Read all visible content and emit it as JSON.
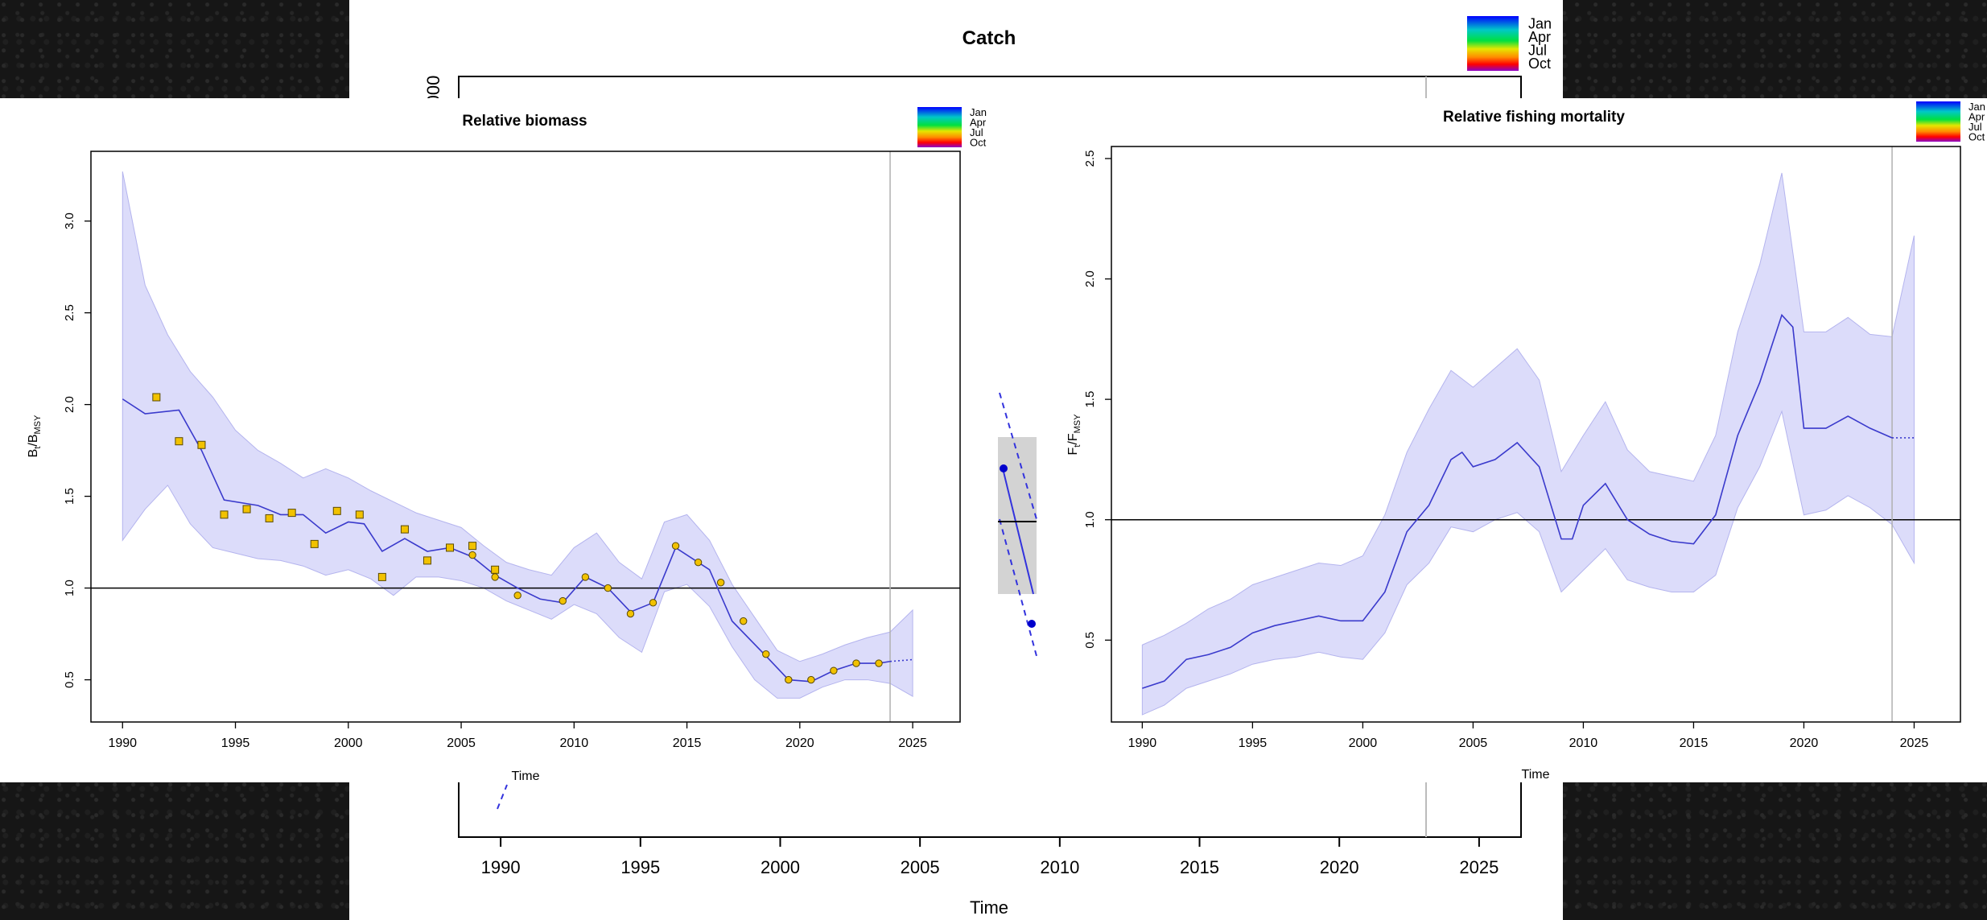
{
  "chart_data": [
    {
      "id": "catch",
      "type": "line",
      "title": "Catch",
      "xlabel": "Time",
      "ylabel_partial": "000",
      "xlim": [
        1988.5,
        2026.5
      ],
      "x_ticks": [
        1990,
        1995,
        2000,
        2005,
        2010,
        2015,
        2020,
        2025
      ],
      "x_tick_labels": [
        "1990",
        "1995",
        "2000",
        "2005",
        "2010",
        "2015",
        "2020",
        "2025"
      ],
      "vline_x": 2023,
      "legend": {
        "placement": "top-right",
        "entries": [
          "Jan",
          "Apr",
          "Jul",
          "Oct"
        ]
      }
    },
    {
      "id": "biomass",
      "type": "line",
      "title": "Relative biomass",
      "xlabel": "Time",
      "ylabel": "B",
      "ylabel_sub_t": "t",
      "ylabel_slash": "/B",
      "ylabel_sub_msy": "MSY",
      "xlim": [
        1988.6,
        2027.1
      ],
      "ylim": [
        0.27,
        3.38
      ],
      "x_ticks": [
        1990,
        1995,
        2000,
        2005,
        2010,
        2015,
        2020,
        2025
      ],
      "x_tick_labels": [
        "1990",
        "1995",
        "2000",
        "2005",
        "2010",
        "2015",
        "2020",
        "2025"
      ],
      "y_ticks": [
        0.5,
        1.0,
        1.5,
        2.0,
        2.5,
        3.0
      ],
      "y_tick_labels": [
        "0.5",
        "1.0",
        "1.5",
        "2.0",
        "2.5",
        "3.0"
      ],
      "reference_line": 1.0,
      "vline_x": 2024,
      "legend": {
        "placement": "top-right",
        "entries": [
          "Jan",
          "Apr",
          "Jul",
          "Oct"
        ]
      },
      "estimate": [
        [
          1990,
          2.03
        ],
        [
          1991,
          1.95
        ],
        [
          1992.5,
          1.97
        ],
        [
          1993.5,
          1.75
        ],
        [
          1994.5,
          1.48
        ],
        [
          1996,
          1.45
        ],
        [
          1997,
          1.4
        ],
        [
          1998,
          1.4
        ],
        [
          1999,
          1.3
        ],
        [
          2000,
          1.36
        ],
        [
          2000.7,
          1.35
        ],
        [
          2001.5,
          1.2
        ],
        [
          2002.5,
          1.27
        ],
        [
          2003.5,
          1.2
        ],
        [
          2004.5,
          1.22
        ],
        [
          2005.5,
          1.17
        ],
        [
          2006.5,
          1.07
        ],
        [
          2007.5,
          1.0
        ],
        [
          2008.5,
          0.94
        ],
        [
          2009.5,
          0.92
        ],
        [
          2010.5,
          1.06
        ],
        [
          2011.5,
          1.0
        ],
        [
          2012.5,
          0.87
        ],
        [
          2013.5,
          0.92
        ],
        [
          2014.5,
          1.22
        ],
        [
          2016,
          1.1
        ],
        [
          2017,
          0.82
        ],
        [
          2018.5,
          0.63
        ],
        [
          2019.5,
          0.5
        ],
        [
          2020.5,
          0.49
        ],
        [
          2021.5,
          0.55
        ],
        [
          2022.5,
          0.59
        ],
        [
          2023.5,
          0.59
        ],
        [
          2024,
          0.6
        ]
      ],
      "forecast": [
        [
          2024,
          0.6
        ],
        [
          2025,
          0.61
        ]
      ],
      "ci_upper": [
        [
          1990,
          3.27
        ],
        [
          1991,
          2.65
        ],
        [
          1992,
          2.38
        ],
        [
          1993,
          2.18
        ],
        [
          1994,
          2.04
        ],
        [
          1995,
          1.86
        ],
        [
          1996,
          1.75
        ],
        [
          1997,
          1.68
        ],
        [
          1998,
          1.6
        ],
        [
          1999,
          1.65
        ],
        [
          2000,
          1.6
        ],
        [
          2001,
          1.53
        ],
        [
          2002,
          1.47
        ],
        [
          2003,
          1.41
        ],
        [
          2004,
          1.37
        ],
        [
          2005,
          1.33
        ],
        [
          2006,
          1.23
        ],
        [
          2007,
          1.14
        ],
        [
          2008,
          1.1
        ],
        [
          2009,
          1.07
        ],
        [
          2010,
          1.22
        ],
        [
          2011,
          1.3
        ],
        [
          2012,
          1.14
        ],
        [
          2013,
          1.05
        ],
        [
          2014,
          1.36
        ],
        [
          2015,
          1.4
        ],
        [
          2016,
          1.26
        ],
        [
          2017,
          1.02
        ],
        [
          2018,
          0.84
        ],
        [
          2019,
          0.66
        ],
        [
          2020,
          0.6
        ],
        [
          2021,
          0.64
        ],
        [
          2022,
          0.69
        ],
        [
          2023,
          0.73
        ],
        [
          2024,
          0.76
        ],
        [
          2025,
          0.88
        ]
      ],
      "ci_lower": [
        [
          1990,
          1.26
        ],
        [
          1991,
          1.43
        ],
        [
          1992,
          1.56
        ],
        [
          1993,
          1.35
        ],
        [
          1994,
          1.22
        ],
        [
          1995,
          1.19
        ],
        [
          1996,
          1.16
        ],
        [
          1997,
          1.15
        ],
        [
          1998,
          1.12
        ],
        [
          1999,
          1.07
        ],
        [
          2000,
          1.1
        ],
        [
          2001,
          1.05
        ],
        [
          2002,
          0.96
        ],
        [
          2003,
          1.06
        ],
        [
          2004,
          1.06
        ],
        [
          2005,
          1.04
        ],
        [
          2006,
          1.0
        ],
        [
          2007,
          0.93
        ],
        [
          2008,
          0.88
        ],
        [
          2009,
          0.83
        ],
        [
          2010,
          0.91
        ],
        [
          2011,
          0.86
        ],
        [
          2012,
          0.73
        ],
        [
          2013,
          0.65
        ],
        [
          2014,
          0.98
        ],
        [
          2015,
          1.02
        ],
        [
          2016,
          0.9
        ],
        [
          2017,
          0.68
        ],
        [
          2018,
          0.5
        ],
        [
          2019,
          0.4
        ],
        [
          2020,
          0.4
        ],
        [
          2021,
          0.46
        ],
        [
          2022,
          0.5
        ],
        [
          2023,
          0.5
        ],
        [
          2024,
          0.48
        ],
        [
          2025,
          0.41
        ]
      ],
      "index_squares": [
        [
          1991.5,
          2.04
        ],
        [
          1992.5,
          1.8
        ],
        [
          1993.5,
          1.78
        ],
        [
          1994.5,
          1.4
        ],
        [
          1995.5,
          1.43
        ],
        [
          1996.5,
          1.38
        ],
        [
          1997.5,
          1.41
        ],
        [
          1998.5,
          1.24
        ],
        [
          1999.5,
          1.42
        ],
        [
          2000.5,
          1.4
        ],
        [
          2001.5,
          1.06
        ],
        [
          2002.5,
          1.32
        ],
        [
          2003.5,
          1.15
        ],
        [
          2004.5,
          1.22
        ],
        [
          2005.5,
          1.23
        ],
        [
          2006.5,
          1.1
        ]
      ],
      "index_circles": [
        [
          2005.5,
          1.18
        ],
        [
          2006.5,
          1.06
        ],
        [
          2007.5,
          0.96
        ],
        [
          2009.5,
          0.93
        ],
        [
          2010.5,
          1.06
        ],
        [
          2011.5,
          1.0
        ],
        [
          2012.5,
          0.86
        ],
        [
          2013.5,
          0.92
        ],
        [
          2014.5,
          1.23
        ],
        [
          2015.5,
          1.14
        ],
        [
          2016.5,
          1.03
        ],
        [
          2017.5,
          0.82
        ],
        [
          2018.5,
          0.64
        ],
        [
          2019.5,
          0.5
        ],
        [
          2020.5,
          0.5
        ],
        [
          2021.5,
          0.55
        ],
        [
          2022.5,
          0.59
        ],
        [
          2023.5,
          0.59
        ]
      ]
    },
    {
      "id": "fishing",
      "type": "line",
      "title": "Relative fishing mortality",
      "xlabel": "Time",
      "ylabel": "F",
      "ylabel_sub_t": "t",
      "ylabel_slash": "/F",
      "ylabel_sub_msy": "MSY",
      "xlim": [
        1988.6,
        2027.1
      ],
      "ylim": [
        0.16,
        2.55
      ],
      "x_ticks": [
        1990,
        1995,
        2000,
        2005,
        2010,
        2015,
        2020,
        2025
      ],
      "x_tick_labels": [
        "1990",
        "1995",
        "2000",
        "2005",
        "2010",
        "2015",
        "2020",
        "2025"
      ],
      "y_ticks": [
        0.5,
        1.0,
        1.5,
        2.0,
        2.5
      ],
      "y_tick_labels": [
        "0.5",
        "1.0",
        "1.5",
        "2.0",
        "2.5"
      ],
      "reference_line": 1.0,
      "vline_x": 2024,
      "legend": {
        "placement": "top-right",
        "entries": [
          "Jan",
          "Apr",
          "Jul",
          "Oct"
        ]
      },
      "estimate": [
        [
          1990,
          0.3
        ],
        [
          1991,
          0.33
        ],
        [
          1992,
          0.42
        ],
        [
          1993,
          0.44
        ],
        [
          1994,
          0.47
        ],
        [
          1995,
          0.53
        ],
        [
          1996,
          0.56
        ],
        [
          1997,
          0.58
        ],
        [
          1998,
          0.6
        ],
        [
          1999,
          0.58
        ],
        [
          2000,
          0.58
        ],
        [
          2001,
          0.7
        ],
        [
          2002,
          0.95
        ],
        [
          2003,
          1.06
        ],
        [
          2004,
          1.25
        ],
        [
          2004.5,
          1.28
        ],
        [
          2005,
          1.22
        ],
        [
          2006,
          1.25
        ],
        [
          2007,
          1.32
        ],
        [
          2008,
          1.22
        ],
        [
          2009,
          0.92
        ],
        [
          2009.5,
          0.92
        ],
        [
          2010,
          1.06
        ],
        [
          2011,
          1.15
        ],
        [
          2012,
          1.0
        ],
        [
          2013,
          0.94
        ],
        [
          2014,
          0.91
        ],
        [
          2015,
          0.9
        ],
        [
          2016,
          1.02
        ],
        [
          2017,
          1.35
        ],
        [
          2018,
          1.57
        ],
        [
          2019,
          1.85
        ],
        [
          2019.5,
          1.8
        ],
        [
          2020,
          1.38
        ],
        [
          2021,
          1.38
        ],
        [
          2022,
          1.43
        ],
        [
          2023,
          1.38
        ],
        [
          2024,
          1.34
        ]
      ],
      "forecast": [
        [
          2024,
          1.34
        ],
        [
          2025,
          1.34
        ]
      ],
      "ci_upper": [
        [
          1990,
          0.48
        ],
        [
          1991,
          0.52
        ],
        [
          1992,
          0.57
        ],
        [
          1993,
          0.63
        ],
        [
          1994,
          0.67
        ],
        [
          1995,
          0.73
        ],
        [
          1996,
          0.76
        ],
        [
          1997,
          0.79
        ],
        [
          1998,
          0.82
        ],
        [
          1999,
          0.81
        ],
        [
          2000,
          0.85
        ],
        [
          2001,
          1.02
        ],
        [
          2002,
          1.28
        ],
        [
          2003,
          1.46
        ],
        [
          2004,
          1.62
        ],
        [
          2005,
          1.55
        ],
        [
          2006,
          1.63
        ],
        [
          2007,
          1.71
        ],
        [
          2008,
          1.58
        ],
        [
          2009,
          1.2
        ],
        [
          2010,
          1.35
        ],
        [
          2011,
          1.49
        ],
        [
          2012,
          1.29
        ],
        [
          2013,
          1.2
        ],
        [
          2014,
          1.18
        ],
        [
          2015,
          1.16
        ],
        [
          2016,
          1.35
        ],
        [
          2017,
          1.78
        ],
        [
          2018,
          2.06
        ],
        [
          2019,
          2.44
        ],
        [
          2020,
          1.78
        ],
        [
          2021,
          1.78
        ],
        [
          2022,
          1.84
        ],
        [
          2023,
          1.77
        ],
        [
          2024,
          1.76
        ],
        [
          2025,
          2.18
        ]
      ],
      "ci_lower": [
        [
          1990,
          0.19
        ],
        [
          1991,
          0.23
        ],
        [
          1992,
          0.3
        ],
        [
          1993,
          0.33
        ],
        [
          1994,
          0.36
        ],
        [
          1995,
          0.4
        ],
        [
          1996,
          0.42
        ],
        [
          1997,
          0.43
        ],
        [
          1998,
          0.45
        ],
        [
          1999,
          0.43
        ],
        [
          2000,
          0.42
        ],
        [
          2001,
          0.53
        ],
        [
          2002,
          0.73
        ],
        [
          2003,
          0.82
        ],
        [
          2004,
          0.97
        ],
        [
          2005,
          0.95
        ],
        [
          2006,
          1.0
        ],
        [
          2007,
          1.03
        ],
        [
          2008,
          0.95
        ],
        [
          2009,
          0.7
        ],
        [
          2010,
          0.79
        ],
        [
          2011,
          0.88
        ],
        [
          2012,
          0.75
        ],
        [
          2013,
          0.72
        ],
        [
          2014,
          0.7
        ],
        [
          2015,
          0.7
        ],
        [
          2016,
          0.77
        ],
        [
          2017,
          1.05
        ],
        [
          2018,
          1.22
        ],
        [
          2019,
          1.45
        ],
        [
          2020,
          1.02
        ],
        [
          2021,
          1.04
        ],
        [
          2022,
          1.1
        ],
        [
          2023,
          1.05
        ],
        [
          2024,
          0.98
        ],
        [
          2025,
          0.82
        ]
      ]
    }
  ]
}
